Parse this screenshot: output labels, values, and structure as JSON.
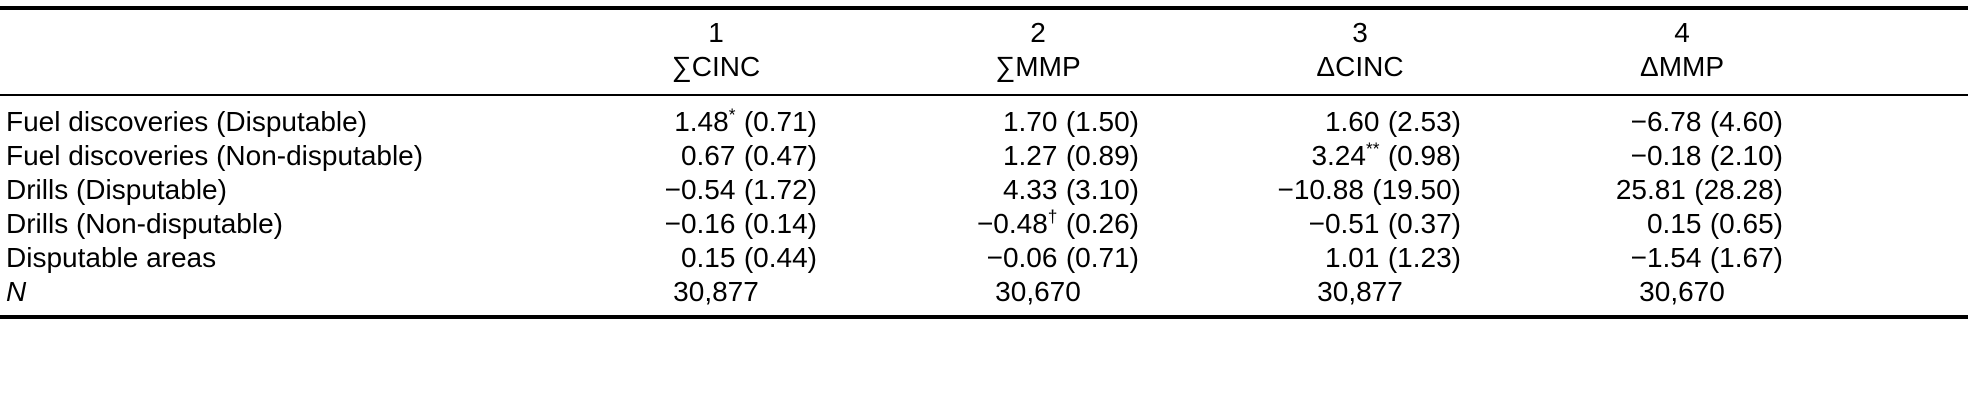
{
  "table": {
    "columns": [
      {
        "number": "1",
        "label": "∑CINC"
      },
      {
        "number": "2",
        "label": "∑MMP"
      },
      {
        "number": "3",
        "label": "ΔCINC"
      },
      {
        "number": "4",
        "label": "ΔMMP"
      }
    ],
    "rows": [
      {
        "label": "Fuel discoveries (Disputable)",
        "cells": [
          {
            "coef": "1.48",
            "sup": "*",
            "se": "(0.71)"
          },
          {
            "coef": "1.70",
            "sup": "",
            "se": "(1.50)"
          },
          {
            "coef": "1.60",
            "sup": "",
            "se": "(2.53)"
          },
          {
            "coef": "−6.78",
            "sup": "",
            "se": "(4.60)"
          }
        ]
      },
      {
        "label": "Fuel discoveries (Non-disputable)",
        "cells": [
          {
            "coef": "0.67",
            "sup": "",
            "se": "(0.47)"
          },
          {
            "coef": "1.27",
            "sup": "",
            "se": "(0.89)"
          },
          {
            "coef": "3.24",
            "sup": "**",
            "se": "(0.98)"
          },
          {
            "coef": "−0.18",
            "sup": "",
            "se": "(2.10)"
          }
        ]
      },
      {
        "label": "Drills (Disputable)",
        "cells": [
          {
            "coef": "−0.54",
            "sup": "",
            "se": "(1.72)"
          },
          {
            "coef": "4.33",
            "sup": "",
            "se": "(3.10)"
          },
          {
            "coef": "−10.88",
            "sup": "",
            "se": "(19.50)"
          },
          {
            "coef": "25.81",
            "sup": "",
            "se": "(28.28)"
          }
        ]
      },
      {
        "label": "Drills (Non-disputable)",
        "cells": [
          {
            "coef": "−0.16",
            "sup": "",
            "se": "(0.14)"
          },
          {
            "coef": "−0.48",
            "sup": "†",
            "se": "(0.26)"
          },
          {
            "coef": "−0.51",
            "sup": "",
            "se": "(0.37)"
          },
          {
            "coef": "0.15",
            "sup": "",
            "se": "(0.65)"
          }
        ]
      },
      {
        "label": "Disputable areas",
        "cells": [
          {
            "coef": "0.15",
            "sup": "",
            "se": "(0.44)"
          },
          {
            "coef": "−0.06",
            "sup": "",
            "se": "(0.71)"
          },
          {
            "coef": "1.01",
            "sup": "",
            "se": "(1.23)"
          },
          {
            "coef": "−1.54",
            "sup": "",
            "se": "(1.67)"
          }
        ]
      }
    ],
    "n_row": {
      "label": "N",
      "values": [
        "30,877",
        "30,670",
        "30,877",
        "30,670"
      ]
    }
  }
}
